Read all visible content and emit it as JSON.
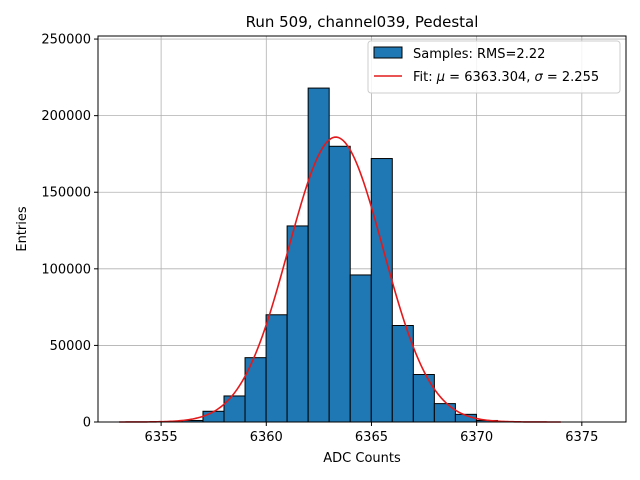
{
  "chart_data": {
    "type": "bar",
    "title": "Run 509, channel039, Pedestal",
    "xlabel": "ADC Counts",
    "ylabel": "Entries",
    "xlim": [
      6352.0,
      6377.1
    ],
    "ylim": [
      0,
      252000
    ],
    "grid": true,
    "legend_position": "top-right",
    "xticks": [
      6355,
      6360,
      6365,
      6370,
      6375
    ],
    "xtick_labels": [
      "6355",
      "6360",
      "6365",
      "6370",
      "6375"
    ],
    "yticks": [
      0,
      50000,
      100000,
      150000,
      200000,
      250000
    ],
    "ytick_labels": [
      "0",
      "50000",
      "100000",
      "150000",
      "200000",
      "250000"
    ],
    "bar_color": "#1f77b4",
    "bar_edge_color": "#000000",
    "fit_color": "#e31a1c",
    "histogram": {
      "name": "Samples: RMS=2.22",
      "bins": [
        {
          "x0": 6355.99,
          "x1": 6356.99,
          "count": 1000
        },
        {
          "x0": 6356.99,
          "x1": 6357.99,
          "count": 7000
        },
        {
          "x0": 6357.99,
          "x1": 6358.99,
          "count": 17000
        },
        {
          "x0": 6358.99,
          "x1": 6359.99,
          "count": 42000
        },
        {
          "x0": 6359.99,
          "x1": 6360.99,
          "count": 70000
        },
        {
          "x0": 6360.99,
          "x1": 6361.99,
          "count": 128000
        },
        {
          "x0": 6361.99,
          "x1": 6362.99,
          "count": 218000
        },
        {
          "x0": 6362.99,
          "x1": 6363.99,
          "count": 180000
        },
        {
          "x0": 6363.99,
          "x1": 6364.99,
          "count": 96000
        },
        {
          "x0": 6364.99,
          "x1": 6365.99,
          "count": 172000
        },
        {
          "x0": 6365.99,
          "x1": 6366.99,
          "count": 63000
        },
        {
          "x0": 6366.99,
          "x1": 6367.99,
          "count": 31000
        },
        {
          "x0": 6367.99,
          "x1": 6368.99,
          "count": 12000
        },
        {
          "x0": 6368.99,
          "x1": 6369.99,
          "count": 5000
        },
        {
          "x0": 6369.99,
          "x1": 6370.99,
          "count": 1000
        }
      ]
    },
    "fit": {
      "name": "Fit: μ = 6363.304, σ = 2.255",
      "label_prefix": "Fit: ",
      "mu_symbol": "μ",
      "mu_text": " = 6363.304, ",
      "sigma_symbol": "σ",
      "sigma_text": " = 2.255",
      "mu": 6363.304,
      "sigma": 2.255,
      "amplitude": 186000,
      "x_range": [
        6353.0,
        6374.0
      ]
    }
  }
}
